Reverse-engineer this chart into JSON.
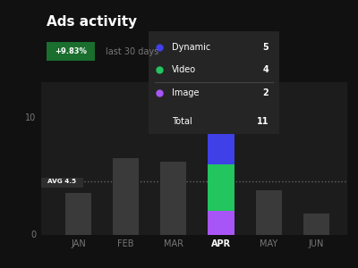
{
  "title": "Ads activity",
  "badge_text": "+9.83%",
  "badge_suffix": "last 30 days",
  "background_color": "#111111",
  "card_color": "#1c1c1c",
  "months": [
    "JAN",
    "FEB",
    "MAR",
    "APR",
    "MAY",
    "JUN"
  ],
  "bar_default_color": "#3a3a3a",
  "bar_heights": [
    3.5,
    6.5,
    6.2,
    11,
    3.8,
    1.8
  ],
  "apr_segments": {
    "dynamic": 5,
    "video": 4,
    "image": 2,
    "colors": [
      "#4040e8",
      "#22c55e",
      "#a855f7"
    ]
  },
  "avg_value": 4.5,
  "avg_label": "AVG 4.5",
  "y_ticks": [
    0,
    10
  ],
  "ylim": [
    0,
    13
  ],
  "legend": {
    "Dynamic": {
      "value": 5,
      "color": "#4040e8"
    },
    "Video": {
      "value": 4,
      "color": "#22c55e"
    },
    "Image": {
      "value": 2,
      "color": "#a855f7"
    },
    "Total": {
      "value": 11,
      "color": null
    }
  },
  "tooltip_bg": "#252525",
  "text_color": "#ffffff",
  "muted_color": "#777777",
  "title_fontsize": 11,
  "tick_fontsize": 7
}
